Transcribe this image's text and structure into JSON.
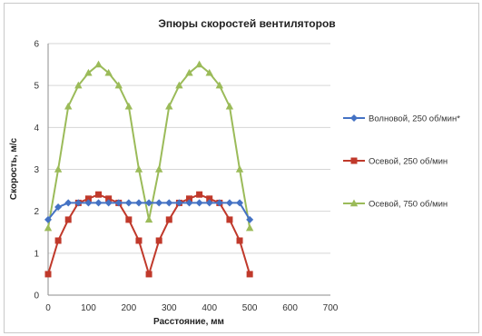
{
  "chart_data": {
    "type": "line",
    "title": "Эпюры скоростей вентиляторов",
    "xlabel": "Расстояние, мм",
    "ylabel": "Скорость, м/с",
    "xlim": [
      0,
      700
    ],
    "ylim": [
      0,
      6
    ],
    "xticks": [
      "0",
      "100",
      "200",
      "300",
      "400",
      "500",
      "600",
      "700"
    ],
    "yticks": [
      "0",
      "1",
      "2",
      "3",
      "4",
      "5",
      "6"
    ],
    "grid": "horizontal",
    "legend_position": "right",
    "x": [
      0,
      25,
      50,
      75,
      100,
      125,
      150,
      175,
      200,
      225,
      250,
      275,
      300,
      325,
      350,
      375,
      400,
      425,
      450,
      475,
      500
    ],
    "series": [
      {
        "name": "Волновой, 250 об/мин*",
        "color": "#4472c4",
        "marker": "diamond",
        "values": [
          1.8,
          2.1,
          2.2,
          2.2,
          2.2,
          2.2,
          2.2,
          2.2,
          2.2,
          2.2,
          2.2,
          2.2,
          2.2,
          2.2,
          2.2,
          2.2,
          2.2,
          2.2,
          2.2,
          2.2,
          1.8
        ]
      },
      {
        "name": "Осевой, 250 об/мин",
        "color": "#c0392b",
        "marker": "square",
        "values": [
          0.5,
          1.3,
          1.8,
          2.2,
          2.3,
          2.4,
          2.3,
          2.2,
          1.8,
          1.3,
          0.5,
          1.3,
          1.8,
          2.2,
          2.3,
          2.4,
          2.3,
          2.2,
          1.8,
          1.3,
          0.5
        ]
      },
      {
        "name": "Осевой, 750 об/мин",
        "color": "#9bbb59",
        "marker": "triangle",
        "values": [
          1.6,
          3.0,
          4.5,
          5.0,
          5.3,
          5.5,
          5.3,
          5.0,
          4.5,
          3.0,
          1.8,
          3.0,
          4.5,
          5.0,
          5.3,
          5.5,
          5.3,
          5.0,
          4.5,
          3.0,
          1.6
        ]
      }
    ]
  }
}
